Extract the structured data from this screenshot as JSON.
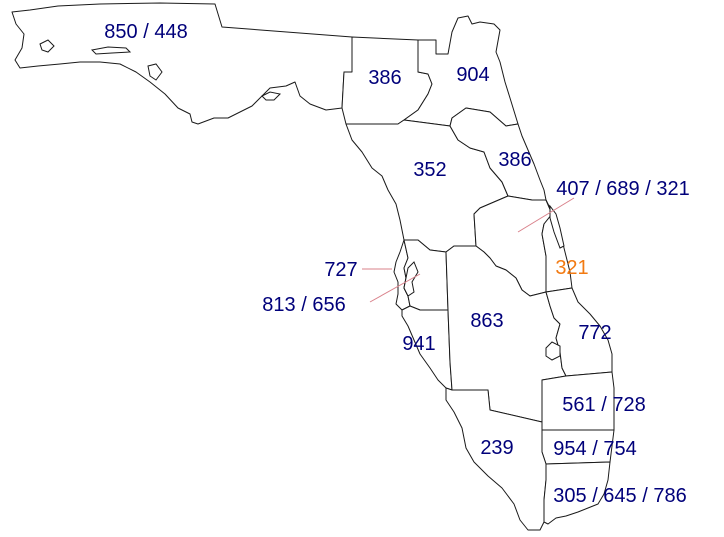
{
  "regions": {
    "panhandle": {
      "label": "850 / 448"
    },
    "north_central": {
      "label": "386"
    },
    "northeast": {
      "label": "904"
    },
    "northeast_coast": {
      "label": "386"
    },
    "central": {
      "label": "352"
    },
    "orlando": {
      "label": "407 / 689 / 321"
    },
    "space_coast": {
      "label": "321"
    },
    "pinellas": {
      "label": "727"
    },
    "tampa": {
      "label": "813 / 656"
    },
    "sarasota": {
      "label": "941"
    },
    "heartland": {
      "label": "863"
    },
    "treasure_coast": {
      "label": "772"
    },
    "palm_beach": {
      "label": "561 / 728"
    },
    "broward": {
      "label": "954 / 754"
    },
    "southwest": {
      "label": "239"
    },
    "miami": {
      "label": "305 / 645 / 786"
    }
  },
  "colors": {
    "outline": "#1a1a1a",
    "label": "#00007a",
    "highlight_label": "#f27a12",
    "leader_line": "#d9808a"
  }
}
